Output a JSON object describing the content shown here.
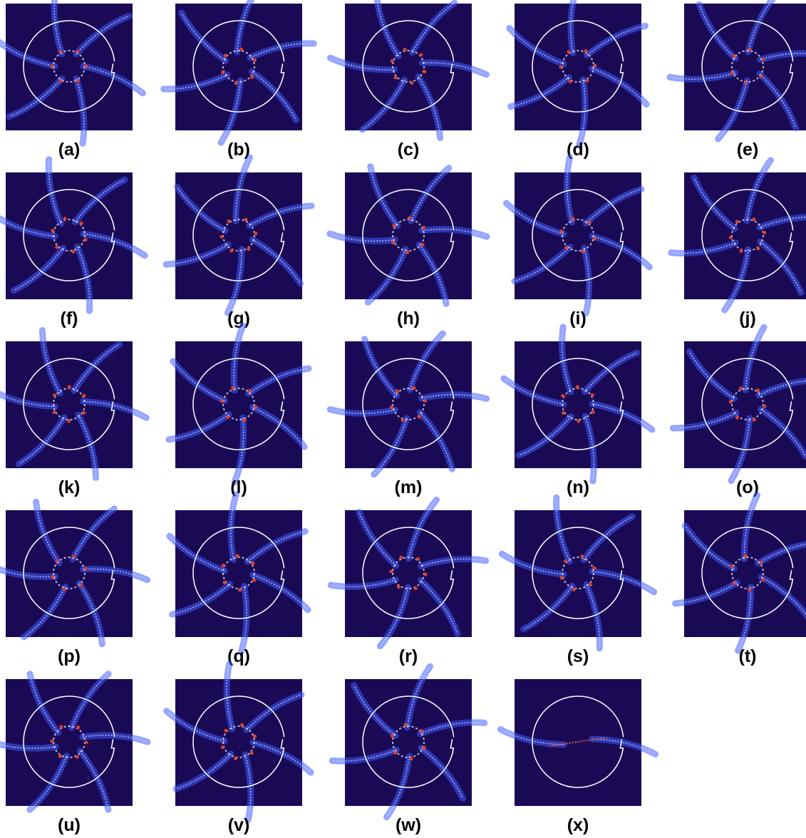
{
  "panels": [
    {
      "label": "(a)"
    },
    {
      "label": "(b)"
    },
    {
      "label": "(c)"
    },
    {
      "label": "(d)"
    },
    {
      "label": "(e)"
    },
    {
      "label": "(f)"
    },
    {
      "label": "(g)"
    },
    {
      "label": "(h)"
    },
    {
      "label": "(i)"
    },
    {
      "label": "(j)"
    },
    {
      "label": "(k)"
    },
    {
      "label": "(l)"
    },
    {
      "label": "(m)"
    },
    {
      "label": "(n)"
    },
    {
      "label": "(o)"
    },
    {
      "label": "(p)"
    },
    {
      "label": "(q)"
    },
    {
      "label": "(r)"
    },
    {
      "label": "(s)"
    },
    {
      "label": "(t)"
    },
    {
      "label": "(u)"
    },
    {
      "label": "(v)"
    },
    {
      "label": "(w)"
    },
    {
      "label": "(x)"
    }
  ]
}
